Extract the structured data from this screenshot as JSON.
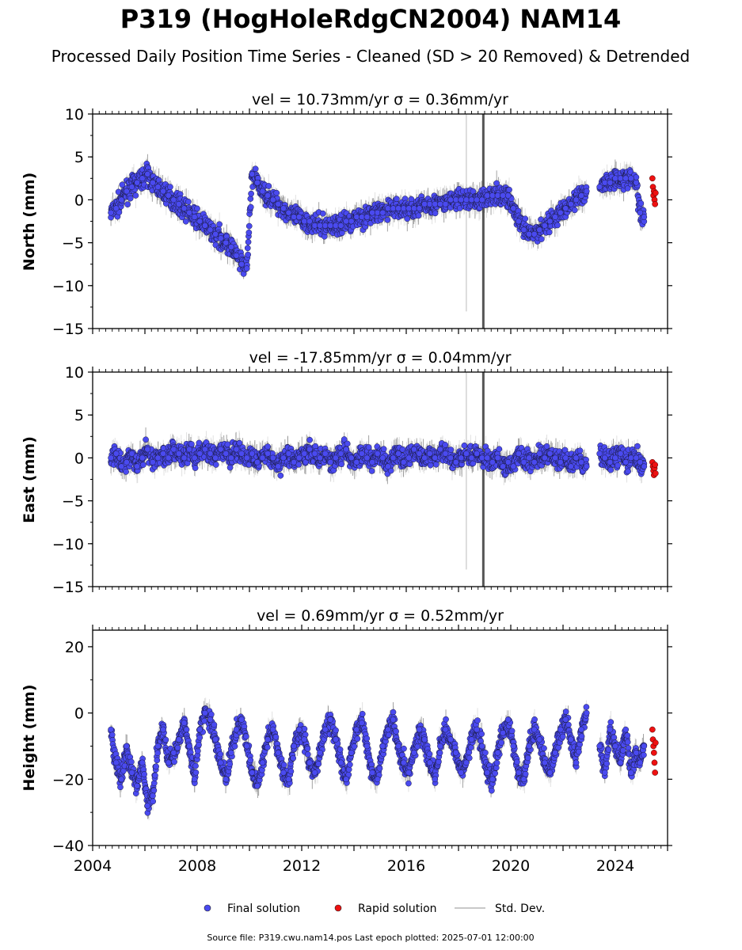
{
  "figure": {
    "title": "P319 (HogHoleRdgCN2004) NAM14",
    "subtitle": "Processed Daily Position Time Series - Cleaned (SD > 20 Removed) & Detrended",
    "footer": "Source file: P319.cwu.nam14.pos  Last epoch plotted: 2025-07-01 12:00:00",
    "colors": {
      "final": "#4a4af0",
      "rapid": "#ee1111",
      "stddev": "#c8c8c8",
      "frame": "#000000"
    }
  },
  "legend": {
    "final": "Final solution",
    "rapid": "Rapid solution",
    "stddev": "Std. Dev."
  },
  "chart_data": [
    {
      "type": "scatter",
      "panel": "north",
      "title": "vel = 10.73mm/yr   σ = 0.36mm/yr",
      "ylabel": "North (mm)",
      "xlim": [
        2004.0,
        2026.0
      ],
      "ylim": [
        -15,
        10
      ],
      "yticks": [
        10,
        5,
        0,
        -5,
        -10,
        -15
      ],
      "ytick_labels": [
        "10",
        "5",
        "0",
        "−5",
        "−10",
        "−15"
      ],
      "series": [
        {
          "name": "Final solution",
          "kind": "final",
          "x": [
            2004.7,
            2004.9,
            2005.1,
            2005.3,
            2005.5,
            2005.7,
            2005.9,
            2006.1,
            2006.3,
            2006.5,
            2006.7,
            2006.9,
            2007.1,
            2007.3,
            2007.5,
            2007.7,
            2007.9,
            2008.1,
            2008.3,
            2008.5,
            2008.7,
            2008.9,
            2009.1,
            2009.3,
            2009.5,
            2009.7,
            2009.9,
            2010.1,
            2010.3,
            2010.5,
            2010.7,
            2010.9,
            2011.1,
            2011.3,
            2011.5,
            2011.7,
            2011.9,
            2012.1,
            2012.3,
            2012.5,
            2012.7,
            2012.9,
            2013.1,
            2013.3,
            2013.5,
            2013.7,
            2013.9,
            2014.1,
            2014.3,
            2014.5,
            2014.7,
            2014.9,
            2015.1,
            2015.3,
            2015.5,
            2015.7,
            2015.9,
            2016.1,
            2016.3,
            2016.5,
            2016.7,
            2016.9,
            2017.1,
            2017.3,
            2017.5,
            2017.7,
            2017.9,
            2018.1,
            2018.3,
            2018.5,
            2018.7,
            2018.9,
            2019.1,
            2019.3,
            2019.5,
            2019.7,
            2019.9,
            2020.1,
            2020.3,
            2020.5,
            2020.7,
            2020.9,
            2021.1,
            2021.3,
            2021.5,
            2021.7,
            2021.9,
            2022.1,
            2022.3,
            2022.5,
            2022.7,
            2022.9,
            2023.4,
            2023.6,
            2023.8,
            2024.0,
            2024.2,
            2024.4,
            2024.6,
            2024.8,
            2024.95,
            2025.1
          ],
          "y": [
            -1.5,
            -1.0,
            0.0,
            1.0,
            1.5,
            2.0,
            2.5,
            3.0,
            2.0,
            1.5,
            1.0,
            0.5,
            0.0,
            -0.5,
            -1.0,
            -1.5,
            -2.0,
            -2.5,
            -3.0,
            -3.5,
            -4.0,
            -4.5,
            -5.0,
            -5.5,
            -6.5,
            -7.5,
            -8.0,
            3.0,
            2.0,
            1.0,
            0.5,
            0.0,
            -0.5,
            -1.0,
            -1.5,
            -2.0,
            -2.0,
            -2.5,
            -2.5,
            -3.0,
            -3.0,
            -3.0,
            -3.0,
            -3.0,
            -3.0,
            -2.5,
            -2.5,
            -2.0,
            -2.0,
            -2.0,
            -1.5,
            -1.5,
            -1.5,
            -1.0,
            -1.0,
            -1.0,
            -1.0,
            -1.0,
            -1.0,
            -1.0,
            -0.5,
            -0.5,
            -0.5,
            -0.5,
            -0.5,
            0.0,
            0.0,
            0.0,
            0.0,
            0.0,
            0.0,
            0.0,
            0.5,
            0.5,
            0.5,
            0.5,
            0.5,
            -1.0,
            -2.5,
            -3.5,
            -4.0,
            -4.0,
            -3.5,
            -3.0,
            -2.5,
            -2.0,
            -1.5,
            -1.0,
            -0.5,
            0.0,
            0.5,
            1.0,
            1.5,
            2.0,
            2.0,
            2.5,
            2.5,
            2.5,
            2.5,
            2.0,
            -1.5,
            -2.0
          ]
        },
        {
          "name": "Rapid solution",
          "kind": "rapid",
          "x": [
            2025.42,
            2025.44,
            2025.46,
            2025.48,
            2025.5,
            2025.52,
            2025.54
          ],
          "y": [
            2.5,
            1.5,
            0.5,
            1.0,
            0.0,
            -0.5,
            0.8
          ]
        }
      ]
    },
    {
      "type": "scatter",
      "panel": "east",
      "title": "vel = -17.85mm/yr   σ = 0.04mm/yr",
      "ylabel": "East (mm)",
      "xlim": [
        2004.0,
        2026.0
      ],
      "ylim": [
        -15,
        10
      ],
      "yticks": [
        10,
        5,
        0,
        -5,
        -10,
        -15
      ],
      "ytick_labels": [
        "10",
        "5",
        "0",
        "−5",
        "−10",
        "−15"
      ],
      "series": [
        {
          "name": "Final solution",
          "kind": "final",
          "x": [
            2004.7,
            2004.9,
            2005.1,
            2005.3,
            2005.5,
            2005.7,
            2005.9,
            2006.1,
            2006.3,
            2006.5,
            2006.7,
            2006.9,
            2007.1,
            2007.3,
            2007.5,
            2007.7,
            2007.9,
            2008.1,
            2008.3,
            2008.5,
            2008.7,
            2008.9,
            2009.1,
            2009.3,
            2009.5,
            2009.7,
            2009.9,
            2010.1,
            2010.3,
            2010.5,
            2010.7,
            2010.9,
            2011.1,
            2011.3,
            2011.5,
            2011.7,
            2011.9,
            2012.1,
            2012.3,
            2012.5,
            2012.7,
            2012.9,
            2013.1,
            2013.3,
            2013.5,
            2013.7,
            2013.9,
            2014.1,
            2014.3,
            2014.5,
            2014.7,
            2014.9,
            2015.1,
            2015.3,
            2015.5,
            2015.7,
            2015.9,
            2016.1,
            2016.3,
            2016.5,
            2016.7,
            2016.9,
            2017.1,
            2017.3,
            2017.5,
            2017.7,
            2017.9,
            2018.1,
            2018.3,
            2018.5,
            2018.7,
            2018.9,
            2019.1,
            2019.3,
            2019.5,
            2019.7,
            2019.9,
            2020.1,
            2020.3,
            2020.5,
            2020.7,
            2020.9,
            2021.1,
            2021.3,
            2021.5,
            2021.7,
            2021.9,
            2022.1,
            2022.3,
            2022.5,
            2022.7,
            2022.9,
            2023.4,
            2023.6,
            2023.8,
            2024.0,
            2024.2,
            2024.4,
            2024.6,
            2024.8,
            2024.95,
            2025.1
          ],
          "y": [
            0.0,
            0.5,
            -1.0,
            -0.5,
            0.5,
            -1.0,
            0.0,
            1.0,
            -0.5,
            0.0,
            0.5,
            0.0,
            1.0,
            0.5,
            0.0,
            1.0,
            0.0,
            0.5,
            1.0,
            0.5,
            0.0,
            1.0,
            0.5,
            0.0,
            1.0,
            0.5,
            0.0,
            0.5,
            -0.5,
            0.0,
            0.5,
            0.0,
            -1.0,
            0.0,
            0.5,
            -0.5,
            0.0,
            0.5,
            1.0,
            0.5,
            0.0,
            0.5,
            -0.5,
            0.0,
            0.5,
            1.0,
            0.0,
            -0.5,
            0.5,
            0.0,
            -0.5,
            0.5,
            0.0,
            -1.0,
            0.0,
            0.5,
            -0.5,
            0.0,
            1.0,
            0.5,
            0.0,
            0.5,
            0.0,
            1.0,
            0.5,
            0.0,
            -0.5,
            0.0,
            0.5,
            0.0,
            0.5,
            0.0,
            0.0,
            -0.5,
            0.0,
            -1.0,
            -0.5,
            -1.0,
            0.5,
            -0.5,
            0.0,
            -0.5,
            0.5,
            0.0,
            0.5,
            0.0,
            -0.5,
            0.0,
            -1.0,
            0.0,
            -0.5,
            -1.0,
            0.5,
            0.0,
            -0.5,
            0.0,
            0.5,
            -0.5,
            0.0,
            0.0,
            -0.5,
            -1.0
          ]
        },
        {
          "name": "Rapid solution",
          "kind": "rapid",
          "x": [
            2025.42,
            2025.44,
            2025.46,
            2025.48,
            2025.5,
            2025.52,
            2025.54
          ],
          "y": [
            -0.5,
            -1.0,
            -1.5,
            -2.0,
            -1.2,
            -0.8,
            -1.8
          ]
        }
      ]
    },
    {
      "type": "scatter",
      "panel": "height",
      "title": "vel = 0.69mm/yr   σ = 0.52mm/yr",
      "ylabel": "Height (mm)",
      "xlim": [
        2004.0,
        2026.0
      ],
      "ylim": [
        -40,
        25
      ],
      "yticks": [
        20,
        0,
        -20,
        -40
      ],
      "ytick_labels": [
        "20",
        "0",
        "−20",
        "−40"
      ],
      "xticks": [
        2004,
        2008,
        2012,
        2016,
        2020,
        2024
      ],
      "xtick_labels": [
        "2004",
        "2008",
        "2012",
        "2016",
        "2020",
        "2024"
      ],
      "series": [
        {
          "name": "Final solution",
          "kind": "final",
          "x": [
            2004.7,
            2004.9,
            2005.1,
            2005.3,
            2005.5,
            2005.7,
            2005.9,
            2006.1,
            2006.3,
            2006.5,
            2006.7,
            2006.9,
            2007.1,
            2007.3,
            2007.5,
            2007.7,
            2007.9,
            2008.1,
            2008.3,
            2008.5,
            2008.7,
            2008.9,
            2009.1,
            2009.3,
            2009.5,
            2009.7,
            2009.9,
            2010.1,
            2010.3,
            2010.5,
            2010.7,
            2010.9,
            2011.1,
            2011.3,
            2011.5,
            2011.7,
            2011.9,
            2012.1,
            2012.3,
            2012.5,
            2012.7,
            2012.9,
            2013.1,
            2013.3,
            2013.5,
            2013.7,
            2013.9,
            2014.1,
            2014.3,
            2014.5,
            2014.7,
            2014.9,
            2015.1,
            2015.3,
            2015.5,
            2015.7,
            2015.9,
            2016.1,
            2016.3,
            2016.5,
            2016.7,
            2016.9,
            2017.1,
            2017.3,
            2017.5,
            2017.7,
            2017.9,
            2018.1,
            2018.3,
            2018.5,
            2018.7,
            2018.9,
            2019.1,
            2019.3,
            2019.5,
            2019.7,
            2019.9,
            2020.1,
            2020.3,
            2020.5,
            2020.7,
            2020.9,
            2021.1,
            2021.3,
            2021.5,
            2021.7,
            2021.9,
            2022.1,
            2022.3,
            2022.5,
            2022.7,
            2022.9,
            2023.4,
            2023.6,
            2023.8,
            2024.0,
            2024.2,
            2024.4,
            2024.6,
            2024.8,
            2024.95,
            2025.1
          ],
          "y": [
            -5,
            -15,
            -20,
            -10,
            -18,
            -22,
            -15,
            -28,
            -25,
            -10,
            -5,
            -15,
            -12,
            -8,
            -3,
            -10,
            -20,
            -5,
            0,
            -2,
            -8,
            -15,
            -20,
            -12,
            -5,
            -2,
            -10,
            -18,
            -22,
            -15,
            -8,
            -5,
            -12,
            -18,
            -20,
            -10,
            -5,
            -8,
            -15,
            -18,
            -12,
            -5,
            -2,
            -8,
            -15,
            -20,
            -12,
            -5,
            -3,
            -10,
            -18,
            -20,
            -10,
            -5,
            -2,
            -10,
            -15,
            -18,
            -12,
            -5,
            -8,
            -15,
            -20,
            -10,
            -5,
            -8,
            -12,
            -18,
            -15,
            -8,
            -5,
            -10,
            -18,
            -20,
            -12,
            -6,
            -2,
            -10,
            -18,
            -20,
            -10,
            -5,
            -8,
            -15,
            -18,
            -12,
            -5,
            -2,
            -8,
            -15,
            -5,
            0,
            -10,
            -18,
            -5,
            -10,
            -15,
            -5,
            -18,
            -12,
            -15,
            -10
          ]
        },
        {
          "name": "Rapid solution",
          "kind": "rapid",
          "x": [
            2025.42,
            2025.44,
            2025.46,
            2025.48,
            2025.5,
            2025.52,
            2025.54
          ],
          "y": [
            -5,
            -8,
            -10,
            -12,
            -15,
            -18,
            -9
          ]
        }
      ]
    }
  ]
}
